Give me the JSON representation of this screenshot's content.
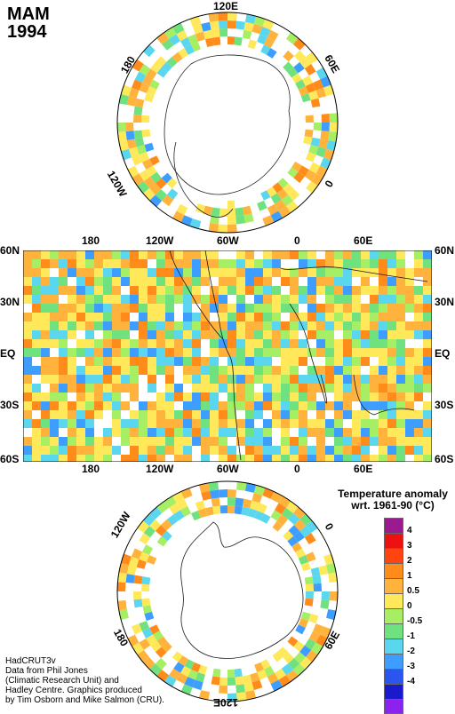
{
  "title": {
    "season": "MAM",
    "year": "1994"
  },
  "north_polar": {
    "lon_labels": [
      "120E",
      "60E",
      "0",
      "120W",
      "180"
    ]
  },
  "global_map": {
    "top_lon_labels": [
      "180",
      "120W",
      "60W",
      "0",
      "60E"
    ],
    "bottom_lon_labels": [
      "180",
      "120W",
      "60W",
      "0",
      "60E"
    ],
    "lat_labels": [
      "60N",
      "30N",
      "EQ",
      "30S",
      "60S"
    ]
  },
  "south_polar": {
    "lon_labels": [
      "120W",
      "0",
      "180",
      "60E",
      "120E"
    ]
  },
  "legend": {
    "title_line1": "Temperature anomaly",
    "title_line2": "wrt. 1961-90  (°C)",
    "ticks": [
      "4",
      "3",
      "2",
      "1",
      "0.5",
      "0",
      "-0.5",
      "-1",
      "-2",
      "-3",
      "-4"
    ],
    "colors": [
      "#9b1a8f",
      "#ee1111",
      "#ff4411",
      "#ff8c1a",
      "#ffb33d",
      "#ffe85a",
      "#a6ee64",
      "#6fe27f",
      "#5ad7ee",
      "#3d9eff",
      "#2a55ee",
      "#1a1acc",
      "#8b22ee"
    ]
  },
  "credits": [
    "HadCRUT3v",
    "Data from Phil Jones",
    "(Climatic Research Unit) and",
    "Hadley Centre.  Graphics produced",
    "by Tim Osborn and Mike Salmon (CRU)."
  ]
}
